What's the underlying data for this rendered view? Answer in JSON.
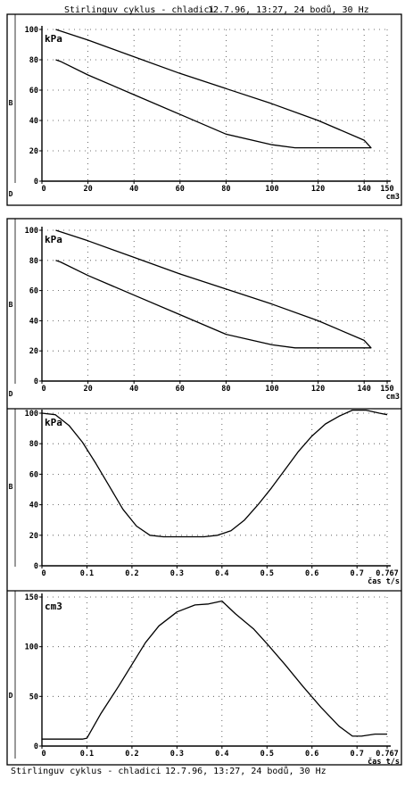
{
  "header_top": {
    "title": "Stirlinguv cyklus - chladici",
    "info": "12.7.96, 13:27, 24 bodů, 30 Hz"
  },
  "footer": {
    "title": "Stirlinguv cyklus - chladici",
    "info": "12.7.96, 13:27, 24 bodů, 30 Hz"
  },
  "chart_data": [
    {
      "type": "line",
      "title": "",
      "xlabel": "cm3",
      "ylabel": "kPa",
      "side_label": "B",
      "xlim": [
        0,
        150
      ],
      "ylim": [
        0,
        100
      ],
      "xticks": [
        0,
        20,
        40,
        60,
        80,
        100,
        120,
        140,
        150
      ],
      "yticks": [
        0,
        20,
        40,
        60,
        80,
        100
      ],
      "grid": true,
      "series": [
        {
          "x": [
            6,
            6,
            20,
            40,
            60,
            80,
            100,
            120,
            140,
            143,
            130,
            110,
            100,
            80,
            60,
            40,
            20,
            8,
            6
          ],
          "y": [
            100,
            100,
            93,
            82,
            71,
            61,
            51,
            40,
            27,
            22,
            22,
            22,
            24,
            31,
            44,
            57,
            70,
            79,
            80
          ]
        }
      ]
    },
    {
      "type": "line",
      "title": "",
      "xlabel": "cm3",
      "ylabel": "kPa",
      "side_label": "B",
      "xlim": [
        0,
        150
      ],
      "ylim": [
        0,
        100
      ],
      "xticks": [
        0,
        20,
        40,
        60,
        80,
        100,
        120,
        140,
        150
      ],
      "yticks": [
        0,
        20,
        40,
        60,
        80,
        100
      ],
      "grid": true,
      "series": [
        {
          "x": [
            6,
            6,
            20,
            40,
            60,
            80,
            100,
            120,
            140,
            143,
            130,
            110,
            100,
            80,
            60,
            40,
            20,
            8,
            6
          ],
          "y": [
            100,
            100,
            93,
            82,
            71,
            61,
            51,
            40,
            27,
            22,
            22,
            22,
            24,
            31,
            44,
            57,
            70,
            79,
            80
          ]
        }
      ]
    },
    {
      "type": "line",
      "title": "",
      "xlabel": "čas t/s",
      "ylabel": "kPa",
      "side_label": "B",
      "xlim": [
        0,
        0.767
      ],
      "ylim": [
        0,
        100
      ],
      "xticks": [
        0,
        0.1,
        0.2,
        0.3,
        0.4,
        0.5,
        0.6,
        0.7,
        0.767
      ],
      "xtick_labels": [
        "0",
        "0.1",
        "0.2",
        "0.3",
        "0.4",
        "0.5",
        "0.6",
        "0.7",
        "0.767"
      ],
      "yticks": [
        0,
        20,
        40,
        60,
        80,
        100
      ],
      "grid": true,
      "series": [
        {
          "x": [
            0,
            0.03,
            0.06,
            0.09,
            0.12,
            0.15,
            0.18,
            0.21,
            0.24,
            0.27,
            0.3,
            0.33,
            0.36,
            0.39,
            0.42,
            0.45,
            0.48,
            0.51,
            0.54,
            0.57,
            0.6,
            0.63,
            0.66,
            0.69,
            0.72,
            0.75,
            0.767
          ],
          "y": [
            100,
            99,
            92,
            81,
            67,
            52,
            37,
            26,
            20,
            19,
            19,
            19,
            19,
            20,
            23,
            30,
            40,
            51,
            63,
            75,
            85,
            93,
            98,
            102,
            102,
            100,
            99
          ]
        }
      ]
    },
    {
      "type": "line",
      "title": "",
      "xlabel": "čas t/s",
      "ylabel": "cm3",
      "side_label": "D",
      "xlim": [
        0,
        0.767
      ],
      "ylim": [
        0,
        150
      ],
      "xticks": [
        0,
        0.1,
        0.2,
        0.3,
        0.4,
        0.5,
        0.6,
        0.7,
        0.767
      ],
      "xtick_labels": [
        "0",
        "0.1",
        "0.2",
        "0.3",
        "0.4",
        "0.5",
        "0.6",
        "0.7",
        "0.767"
      ],
      "yticks": [
        0,
        50,
        100,
        150
      ],
      "grid": true,
      "series": [
        {
          "x": [
            0,
            0.05,
            0.09,
            0.1,
            0.13,
            0.17,
            0.2,
            0.23,
            0.26,
            0.3,
            0.34,
            0.37,
            0.4,
            0.43,
            0.47,
            0.5,
            0.54,
            0.58,
            0.62,
            0.66,
            0.69,
            0.71,
            0.74,
            0.767
          ],
          "y": [
            7,
            7,
            7,
            8,
            32,
            60,
            82,
            104,
            121,
            135,
            142,
            143,
            146,
            133,
            118,
            103,
            82,
            60,
            39,
            20,
            10,
            10,
            12,
            12
          ]
        }
      ]
    }
  ]
}
